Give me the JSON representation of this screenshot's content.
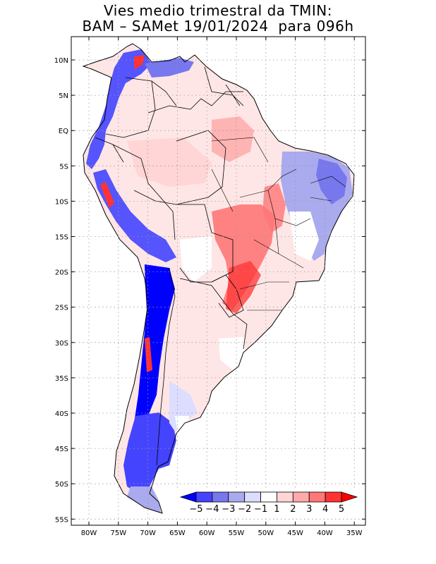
{
  "title": {
    "line1": "Vies medio trimestral da TMIN:",
    "line2": "BAM – SAMet 19/01/2024  para 096h"
  },
  "axes": {
    "lon_labels": [
      "80W",
      "75W",
      "70W",
      "65W",
      "60W",
      "55W",
      "50W",
      "45W",
      "40W",
      "35W"
    ],
    "lat_labels": [
      "10N",
      "5N",
      "EQ",
      "5S",
      "10S",
      "15S",
      "20S",
      "25S",
      "30S",
      "35S",
      "40S",
      "45S",
      "50S",
      "55S"
    ]
  },
  "colorbar": {
    "labels": [
      "−5",
      "−4",
      "−3",
      "−2",
      "−1",
      "1",
      "2",
      "3",
      "4",
      "5"
    ],
    "colors": [
      "#0000ff",
      "#4444ff",
      "#7777ee",
      "#aaaaee",
      "#ddddff",
      "#ffffff",
      "#ffd5d5",
      "#ffaaaa",
      "#ff7777",
      "#ff3333",
      "#ff0000"
    ]
  },
  "colors": {
    "grid": "#999999",
    "frame": "#000000",
    "ocean": "#ffffff",
    "coast": "#000000"
  }
}
